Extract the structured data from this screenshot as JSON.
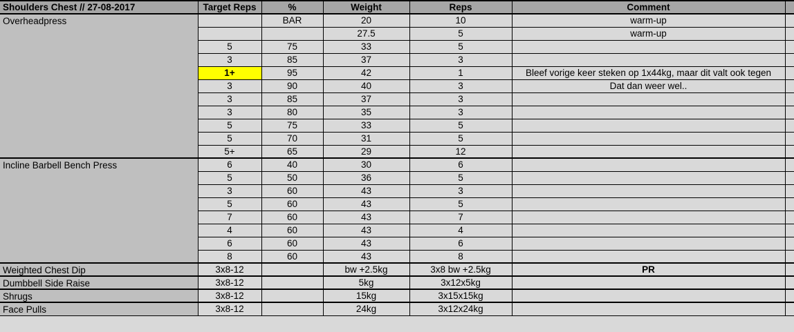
{
  "sheet": {
    "title": "Shoulders Chest // 27-08-2017",
    "columns": [
      "Target Reps",
      "%",
      "Weight",
      "Reps",
      "Comment"
    ],
    "colors": {
      "header_bg": "#a6a6a6",
      "exercise_col_bg": "#bfbfbf",
      "cell_bg": "#d9d9d9",
      "highlight_bg": "#ffff00",
      "gridline": "#000000",
      "text": "#000000"
    },
    "sections": [
      {
        "exercise": "Overheadpress",
        "rows": [
          {
            "target": "",
            "pct": "BAR",
            "weight": "20",
            "reps": "10",
            "comment": "warm-up"
          },
          {
            "target": "",
            "pct": "",
            "weight": "27.5",
            "reps": "5",
            "comment": "warm-up"
          },
          {
            "target": "5",
            "pct": "75",
            "weight": "33",
            "reps": "5",
            "comment": ""
          },
          {
            "target": "3",
            "pct": "85",
            "weight": "37",
            "reps": "3",
            "comment": ""
          },
          {
            "target": "1+",
            "pct": "95",
            "weight": "42",
            "reps": "1",
            "comment": "Bleef vorige keer steken op 1x44kg, maar dit valt ook tegen",
            "target_highlight": true
          },
          {
            "target": "3",
            "pct": "90",
            "weight": "40",
            "reps": "3",
            "comment": "Dat dan weer wel.."
          },
          {
            "target": "3",
            "pct": "85",
            "weight": "37",
            "reps": "3",
            "comment": ""
          },
          {
            "target": "3",
            "pct": "80",
            "weight": "35",
            "reps": "3",
            "comment": ""
          },
          {
            "target": "5",
            "pct": "75",
            "weight": "33",
            "reps": "5",
            "comment": ""
          },
          {
            "target": "5",
            "pct": "70",
            "weight": "31",
            "reps": "5",
            "comment": ""
          },
          {
            "target": "5+",
            "pct": "65",
            "weight": "29",
            "reps": "12",
            "comment": ""
          }
        ]
      },
      {
        "exercise": "Incline Barbell Bench Press",
        "rows": [
          {
            "target": "6",
            "pct": "40",
            "weight": "30",
            "reps": "6",
            "comment": ""
          },
          {
            "target": "5",
            "pct": "50",
            "weight": "36",
            "reps": "5",
            "comment": ""
          },
          {
            "target": "3",
            "pct": "60",
            "weight": "43",
            "reps": "3",
            "comment": ""
          },
          {
            "target": "5",
            "pct": "60",
            "weight": "43",
            "reps": "5",
            "comment": ""
          },
          {
            "target": "7",
            "pct": "60",
            "weight": "43",
            "reps": "7",
            "comment": ""
          },
          {
            "target": "4",
            "pct": "60",
            "weight": "43",
            "reps": "4",
            "comment": ""
          },
          {
            "target": "6",
            "pct": "60",
            "weight": "43",
            "reps": "6",
            "comment": ""
          },
          {
            "target": "8",
            "pct": "60",
            "weight": "43",
            "reps": "8",
            "comment": ""
          }
        ]
      },
      {
        "exercise": "Weighted Chest Dip",
        "rows": [
          {
            "target": "3x8-12",
            "pct": "",
            "weight": "bw +2.5kg",
            "reps": "3x8 bw +2.5kg",
            "comment": "PR",
            "comment_bold": true
          }
        ]
      },
      {
        "exercise": "Dumbbell Side Raise",
        "rows": [
          {
            "target": "3x8-12",
            "pct": "",
            "weight": "5kg",
            "reps": "3x12x5kg",
            "comment": ""
          }
        ]
      },
      {
        "exercise": "Shrugs",
        "rows": [
          {
            "target": "3x8-12",
            "pct": "",
            "weight": "15kg",
            "reps": "3x15x15kg",
            "comment": ""
          }
        ]
      },
      {
        "exercise": "Face Pulls",
        "rows": [
          {
            "target": "3x8-12",
            "pct": "",
            "weight": "24kg",
            "reps": "3x12x24kg",
            "comment": ""
          }
        ]
      }
    ]
  }
}
